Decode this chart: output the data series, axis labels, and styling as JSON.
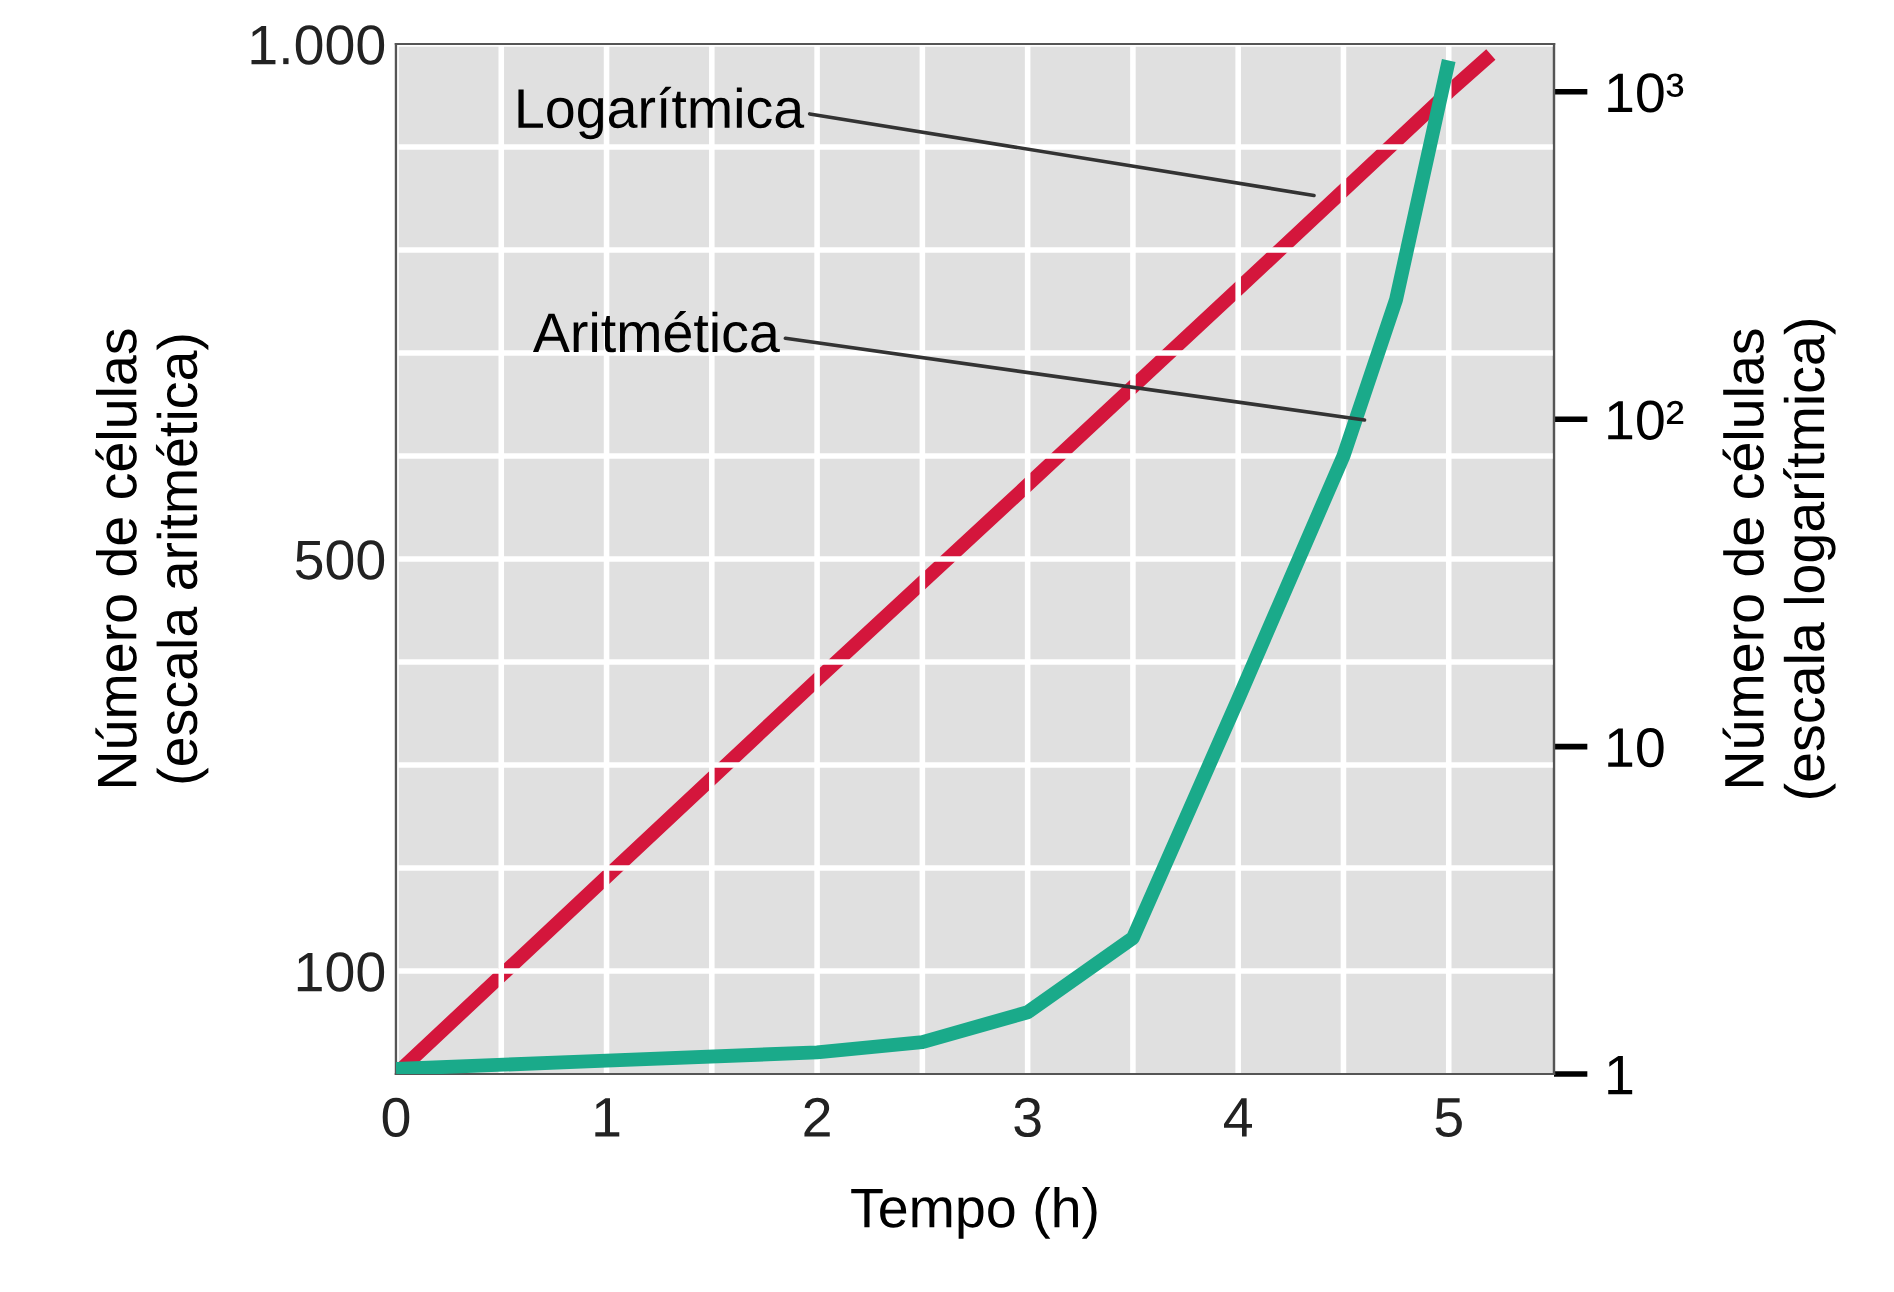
{
  "chart_data": {
    "type": "line",
    "xlabel": "Tempo (h)",
    "ylabel": "Número de células\n(escala aritmética)",
    "y2label": "Número de células\n(escala logarítmica)",
    "xlim": [
      0,
      5.5
    ],
    "xticks": [
      0,
      {
        "value": 0.5,
        "label": null
      },
      1,
      {
        "value": 1.5,
        "label": null
      },
      2,
      {
        "value": 2.5,
        "label": null
      },
      3,
      {
        "value": 3.5,
        "label": null
      },
      4,
      {
        "value": 4.5,
        "label": null
      },
      5
    ],
    "ylim": [
      0,
      1000
    ],
    "yticks": [
      {
        "value": 100,
        "label": "100"
      },
      {
        "value": 200,
        "label": null
      },
      {
        "value": 300,
        "label": null
      },
      {
        "value": 400,
        "label": null
      },
      {
        "value": 500,
        "label": "500"
      },
      {
        "value": 600,
        "label": null
      },
      {
        "value": 700,
        "label": null
      },
      {
        "value": 800,
        "label": null
      },
      {
        "value": 900,
        "label": null
      },
      {
        "value": 1000,
        "label": "1.000"
      }
    ],
    "y2lim": [
      1,
      1400
    ],
    "y2ticks": [
      1,
      10,
      {
        "value": 100,
        "label": "10²"
      },
      {
        "value": 1000,
        "label": "10³"
      }
    ],
    "log": "y2",
    "grid": true,
    "marker": "none",
    "line_style": "solid",
    "series": [
      {
        "color": "#1aaa8a",
        "x": [
          0,
          1,
          2,
          2.5,
          3,
          3.5,
          4,
          4.5,
          4.75,
          5
        ],
        "values": [
          5,
          13,
          21,
          31,
          60,
          132,
          364,
          600,
          752,
          984
        ]
      },
      {
        "color": "#d4163c",
        "axis": "y2",
        "x": [
          0,
          1,
          2,
          3,
          4,
          5,
          5.2
        ],
        "values": [
          1,
          4,
          16,
          63,
          250,
          1000,
          1300
        ]
      }
    ],
    "annotations": [
      {
        "text": "Logarítmica",
        "x": 4.36,
        "y": 853
      },
      {
        "text": "Aritmética",
        "x": 4.6,
        "y": 635
      }
    ]
  }
}
